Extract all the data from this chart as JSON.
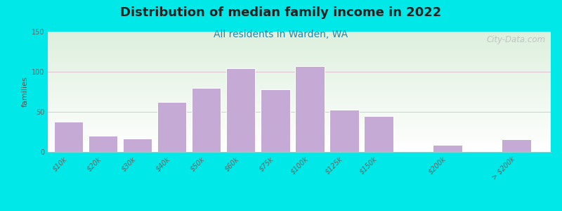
{
  "title": "Distribution of median family income in 2022",
  "subtitle": "All residents in Warden, WA",
  "ylabel": "families",
  "categories": [
    "$10k",
    "$20k",
    "$30k",
    "$40k",
    "$50k",
    "$60k",
    "$75k",
    "$100k",
    "$125k",
    "$150k",
    "$200k",
    "> $200k"
  ],
  "values": [
    38,
    20,
    17,
    62,
    80,
    104,
    78,
    107,
    53,
    45,
    9,
    16
  ],
  "x_positions": [
    0,
    1,
    2,
    3,
    4,
    5,
    6,
    7,
    8,
    9,
    11,
    13
  ],
  "bar_color": "#c4aad4",
  "bar_edge_color": "#ffffff",
  "bg_outer": "#00e8e8",
  "bg_plot_top": "#ddeedd",
  "bg_plot_bottom": "#f8f8ff",
  "ylim": [
    0,
    150
  ],
  "yticks": [
    0,
    50,
    100,
    150
  ],
  "watermark": "City-Data.com",
  "title_fontsize": 13,
  "subtitle_fontsize": 10,
  "ylabel_fontsize": 8,
  "tick_fontsize": 7,
  "bar_width": 0.85
}
